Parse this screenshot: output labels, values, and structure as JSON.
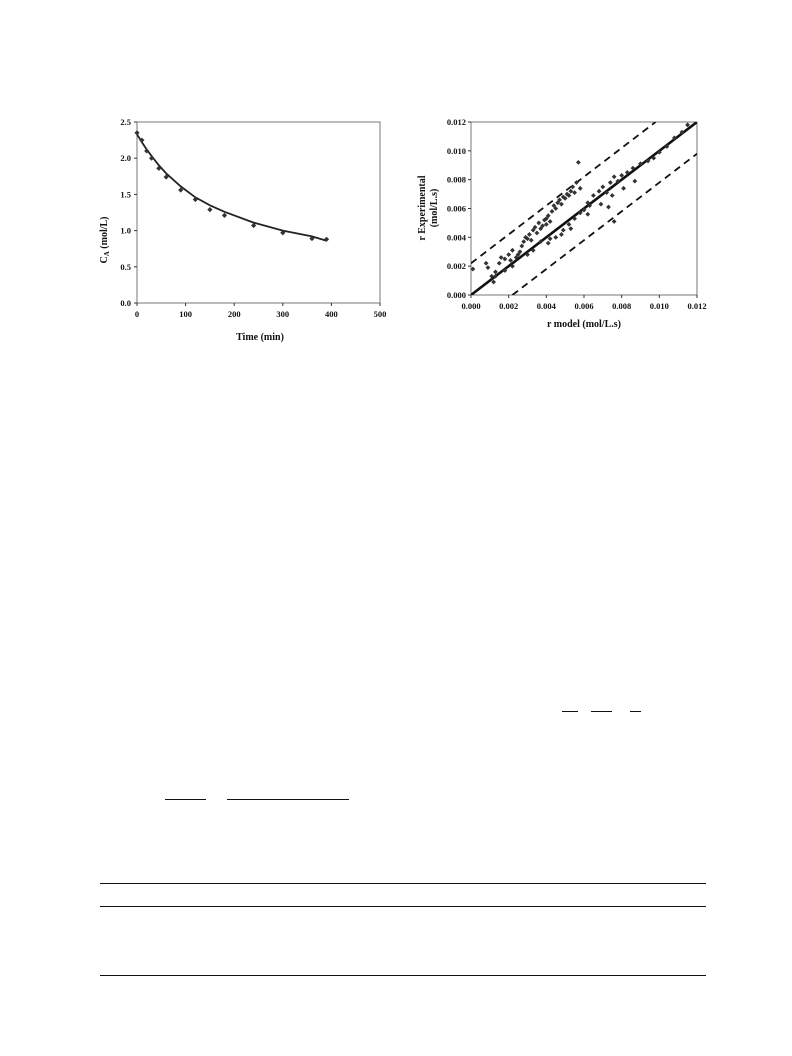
{
  "chart_data": [
    {
      "type": "scatter",
      "fit": "line",
      "ylabel_main": "C",
      "ylabel_sub": "A",
      "ylabel_unit": " (mol/L)",
      "xlabel": "Time (min)",
      "xlim": [
        0,
        500
      ],
      "ylim": [
        0,
        2.5
      ],
      "xticks": [
        0,
        100,
        200,
        300,
        400,
        500
      ],
      "yticks": [
        0.0,
        0.5,
        1.0,
        1.5,
        2.0,
        2.5
      ],
      "yticks_labels": [
        "0.0",
        "0.5",
        "1.0",
        "1.5",
        "2.0",
        "2.5"
      ],
      "series": [
        {
          "kind": "points",
          "x": [
            0,
            10,
            20,
            30,
            45,
            60,
            90,
            120,
            150,
            180,
            240,
            300,
            360,
            390
          ],
          "y": [
            2.35,
            2.25,
            2.1,
            2.0,
            1.86,
            1.74,
            1.56,
            1.43,
            1.29,
            1.21,
            1.07,
            0.97,
            0.89,
            0.88
          ]
        },
        {
          "kind": "fit",
          "x": [
            0,
            10,
            20,
            30,
            45,
            60,
            90,
            120,
            150,
            180,
            240,
            300,
            360,
            390
          ],
          "y": [
            2.33,
            2.22,
            2.12,
            2.03,
            1.9,
            1.79,
            1.61,
            1.46,
            1.35,
            1.26,
            1.11,
            1.0,
            0.92,
            0.86
          ]
        }
      ]
    },
    {
      "type": "scatter",
      "ylabel_line1": "r Experimental",
      "ylabel_line2": "(mol/L.s)",
      "xlabel": "r model (mol/L.s)",
      "xlim": [
        0,
        0.012
      ],
      "ylim": [
        0,
        0.012
      ],
      "xticks": [
        0.0,
        0.002,
        0.004,
        0.006,
        0.008,
        0.01,
        0.012
      ],
      "xticks_labels": [
        "0.000",
        "0.002",
        "0.004",
        "0.006",
        "0.008",
        "0.010",
        "0.012"
      ],
      "yticks": [
        0.0,
        0.002,
        0.004,
        0.006,
        0.008,
        0.01,
        0.012
      ],
      "yticks_labels": [
        "0.000",
        "0.002",
        "0.004",
        "0.006",
        "0.008",
        "0.010",
        "0.012"
      ],
      "lines": [
        {
          "kind": "parity",
          "x": [
            0,
            0.012
          ],
          "y": [
            0,
            0.012
          ]
        },
        {
          "kind": "upper-bound",
          "x": [
            0,
            0.0098
          ],
          "y": [
            0.0022,
            0.012
          ]
        },
        {
          "kind": "lower-bound",
          "x": [
            0.0022,
            0.012
          ],
          "y": [
            0,
            0.0098
          ]
        }
      ],
      "points": {
        "x": [
          0.0001,
          0.0008,
          0.0009,
          0.0011,
          0.0012,
          0.0013,
          0.0015,
          0.0016,
          0.0018,
          0.002,
          0.0021,
          0.0022,
          0.0024,
          0.0025,
          0.0026,
          0.0027,
          0.0028,
          0.0029,
          0.003,
          0.0031,
          0.0032,
          0.0033,
          0.0034,
          0.0035,
          0.0036,
          0.0037,
          0.0038,
          0.0039,
          0.004,
          0.004,
          0.0041,
          0.0042,
          0.0043,
          0.0044,
          0.0045,
          0.0046,
          0.0047,
          0.0048,
          0.0049,
          0.005,
          0.0051,
          0.0052,
          0.0053,
          0.0054,
          0.0055,
          0.0056,
          0.0057,
          0.0058,
          0.006,
          0.0062,
          0.0065,
          0.0068,
          0.007,
          0.0072,
          0.0074,
          0.0076,
          0.0078,
          0.008,
          0.0083,
          0.0086,
          0.009,
          0.0094,
          0.0097,
          0.01,
          0.0104,
          0.0108,
          0.0112,
          0.0115,
          0.0037,
          0.0042,
          0.0045,
          0.0049,
          0.0052,
          0.0055,
          0.0058,
          0.0063,
          0.0073,
          0.0076,
          0.0013,
          0.0018,
          0.0022,
          0.003,
          0.0033,
          0.0041,
          0.0048,
          0.0053,
          0.0062,
          0.0069,
          0.0075,
          0.0081,
          0.0087
        ],
        "y": [
          0.0018,
          0.0022,
          0.0019,
          0.0013,
          0.0009,
          0.0016,
          0.0022,
          0.0026,
          0.0025,
          0.0028,
          0.0024,
          0.0031,
          0.0026,
          0.0028,
          0.003,
          0.0034,
          0.0037,
          0.004,
          0.0039,
          0.0042,
          0.0038,
          0.0045,
          0.0047,
          0.0043,
          0.005,
          0.0046,
          0.0048,
          0.0052,
          0.0053,
          0.0049,
          0.0055,
          0.0051,
          0.0058,
          0.0062,
          0.006,
          0.0064,
          0.0066,
          0.0063,
          0.0068,
          0.0067,
          0.007,
          0.0069,
          0.0072,
          0.0075,
          0.0071,
          0.0078,
          0.0092,
          0.0074,
          0.0059,
          0.0064,
          0.0069,
          0.0072,
          0.0075,
          0.0071,
          0.0078,
          0.0082,
          0.0079,
          0.0083,
          0.0085,
          0.0088,
          0.0091,
          0.0093,
          0.0095,
          0.0099,
          0.0103,
          0.0109,
          0.0113,
          0.0118,
          0.0037,
          0.0039,
          0.004,
          0.0045,
          0.0049,
          0.0053,
          0.0057,
          0.0062,
          0.0061,
          0.0051,
          0.0013,
          0.0017,
          0.002,
          0.0028,
          0.0031,
          0.0036,
          0.0042,
          0.0046,
          0.0056,
          0.0063,
          0.0069,
          0.0074,
          0.0079
        ]
      }
    }
  ]
}
